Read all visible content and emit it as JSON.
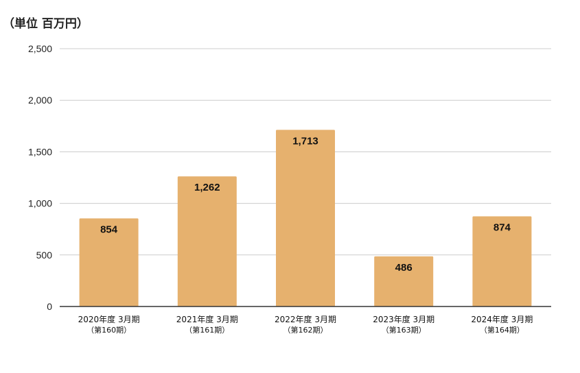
{
  "chart_data": {
    "type": "bar",
    "unit_label": "（単位 百万円）",
    "categories": [
      {
        "line1": "2020年度 3月期",
        "line2": "（第160期）"
      },
      {
        "line1": "2021年度 3月期",
        "line2": "（第161期）"
      },
      {
        "line1": "2022年度 3月期",
        "line2": "（第162期）"
      },
      {
        "line1": "2023年度 3月期",
        "line2": "（第163期）"
      },
      {
        "line1": "2024年度 3月期",
        "line2": "（第164期）"
      }
    ],
    "values": [
      854,
      1262,
      1713,
      486,
      874
    ],
    "value_labels": [
      "854",
      "1,262",
      "1,713",
      "486",
      "874"
    ],
    "ylim": [
      0,
      2500
    ],
    "yticks": [
      {
        "value": 0,
        "label": "0"
      },
      {
        "value": 500,
        "label": "500"
      },
      {
        "value": 1000,
        "label": "1,000"
      },
      {
        "value": 1500,
        "label": "1,500"
      },
      {
        "value": 2000,
        "label": "2,000"
      },
      {
        "value": 2500,
        "label": "2,500"
      }
    ],
    "grid": true,
    "legend": "none",
    "bar_color": "#E6B16E",
    "grid_color": "#CCCCCC",
    "axis_color": "#333333"
  }
}
